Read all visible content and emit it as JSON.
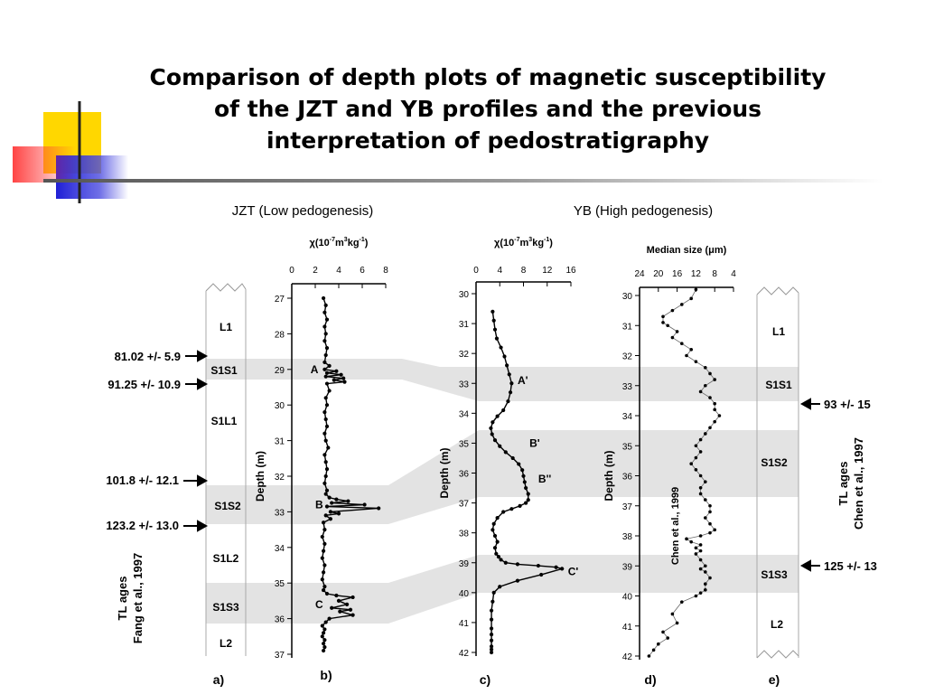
{
  "slide": {
    "title_lines": [
      "Comparison of depth plots of magnetic susceptibility",
      "of the JZT and YB profiles and the previous",
      "interpretation of pedostratigraphy"
    ]
  },
  "figure": {
    "jzt_header": "JZT (Low pedogenesis)",
    "yb_header": "YB (High pedogenesis)",
    "panel_labels": [
      "a)",
      "b)",
      "c)",
      "d)",
      "e)"
    ],
    "jzt_units": [
      "L1",
      "S1S1",
      "S1L1",
      "S1S2",
      "S1L2",
      "S1S3",
      "L2"
    ],
    "yb_units": [
      "L1",
      "S1S1",
      "S1S2",
      "S1S3",
      "L2"
    ],
    "jzt_tl_ages": [
      "81.02 +/- 5.9",
      "91.25 +/- 10.9",
      "101.8 +/- 12.1",
      "123.2 +/- 13.0"
    ],
    "yb_tl_ages": [
      "93 +/- 15",
      "125 +/- 13"
    ],
    "jzt_tl_caption": [
      "TL ages",
      "Fang et al., 1997"
    ],
    "yb_tl_caption": [
      "TL ages",
      "Chen et al., 1997"
    ],
    "chen_1999_label": "Chen et al., 1999",
    "colors": {
      "band": "#e3e3e3",
      "line": "#000000"
    }
  },
  "chart_data": [
    {
      "id": "b",
      "type": "line",
      "title": "b)",
      "xlabel_symbol": "χ",
      "xlabel_base": "(10",
      "xlabel_exp1": "-7",
      "xlabel_mid": "m",
      "xlabel_exp2": "3",
      "xlabel_mid2": "kg",
      "xlabel_exp3": "-1",
      "xlabel_end": ")",
      "ylabel": "Depth (m)",
      "xlim": [
        0,
        8
      ],
      "ylim": [
        26.7,
        37
      ],
      "xticks": [
        0,
        2,
        4,
        6,
        8
      ],
      "yticks": [
        27,
        28,
        29,
        30,
        31,
        32,
        33,
        34,
        35,
        36,
        37
      ],
      "y_reversed": true,
      "annotations": [
        {
          "text": "A",
          "x": 1.6,
          "y": 29.0
        },
        {
          "text": "B",
          "x": 2.0,
          "y": 32.8
        },
        {
          "text": "C",
          "x": 2.0,
          "y": 35.6
        }
      ],
      "series": [
        {
          "x": [
            2.7,
            2.9,
            2.8,
            3.0,
            2.8,
            2.9,
            2.8,
            3.0,
            2.9,
            2.8,
            3.2,
            2.8,
            3.8,
            3.0,
            4.2,
            2.9,
            4.4,
            3.6,
            4.5,
            3.0,
            3.2,
            2.9,
            3.0,
            2.8,
            2.9,
            3.0,
            2.8,
            2.9,
            3.1,
            2.8,
            2.9,
            3.0,
            2.9,
            2.8,
            3.0,
            2.9,
            3.2,
            3.8,
            4.8,
            3.4,
            6.2,
            3.0,
            7.4,
            3.3,
            4.0,
            2.9,
            3.3,
            2.7,
            2.8,
            2.6,
            2.8,
            2.7,
            2.6,
            2.8,
            2.7,
            2.6,
            2.8,
            2.7,
            3.0,
            3.8,
            5.2,
            4.0,
            4.7,
            3.4,
            5.0,
            4.1,
            5.2,
            3.2,
            2.9,
            2.6,
            2.8,
            2.7,
            2.6,
            2.8,
            2.7,
            2.8,
            2.7
          ],
          "y": [
            27.0,
            27.2,
            27.4,
            27.6,
            27.8,
            28.0,
            28.2,
            28.4,
            28.6,
            28.8,
            28.9,
            29.0,
            29.05,
            29.1,
            29.15,
            29.2,
            29.25,
            29.3,
            29.35,
            29.4,
            29.6,
            29.8,
            30.0,
            30.2,
            30.4,
            30.6,
            30.8,
            31.0,
            31.2,
            31.4,
            31.6,
            31.8,
            32.0,
            32.2,
            32.4,
            32.5,
            32.6,
            32.65,
            32.7,
            32.75,
            32.8,
            32.85,
            32.9,
            33.0,
            33.05,
            33.1,
            33.2,
            33.3,
            33.5,
            33.7,
            33.9,
            34.1,
            34.3,
            34.5,
            34.7,
            34.9,
            35.1,
            35.2,
            35.3,
            35.35,
            35.4,
            35.5,
            35.6,
            35.7,
            35.75,
            35.8,
            35.9,
            36.0,
            36.1,
            36.2,
            36.3,
            36.4,
            36.5,
            36.6,
            36.7,
            36.8,
            36.9
          ]
        }
      ]
    },
    {
      "id": "c",
      "type": "line",
      "title": "c)",
      "xlabel_symbol": "χ",
      "xlabel_base": "(10",
      "xlabel_exp1": "-7",
      "xlabel_mid": "m",
      "xlabel_exp2": "3",
      "xlabel_mid2": "kg",
      "xlabel_exp3": "-1",
      "xlabel_end": ")",
      "ylabel": "Depth (m)",
      "xlim": [
        0,
        16
      ],
      "ylim": [
        29.8,
        42
      ],
      "xticks": [
        0,
        4,
        8,
        12,
        16
      ],
      "yticks": [
        30,
        31,
        32,
        33,
        34,
        35,
        36,
        37,
        38,
        39,
        40,
        41,
        42
      ],
      "y_reversed": true,
      "annotations": [
        {
          "text": "A'",
          "x": 7.0,
          "y": 32.9
        },
        {
          "text": "B'",
          "x": 9.0,
          "y": 35.0
        },
        {
          "text": "B''",
          "x": 10.5,
          "y": 36.2
        },
        {
          "text": "C'",
          "x": 15.5,
          "y": 39.3
        }
      ],
      "series": [
        {
          "x": [
            2.8,
            3.0,
            3.2,
            3.5,
            4.2,
            4.8,
            5.2,
            5.6,
            6.0,
            5.8,
            5.4,
            4.6,
            3.6,
            2.8,
            2.5,
            2.7,
            3.2,
            4.0,
            5.0,
            6.2,
            7.2,
            7.8,
            8.0,
            8.2,
            8.4,
            8.8,
            8.8,
            8.4,
            7.4,
            6.0,
            4.6,
            3.6,
            3.0,
            2.8,
            3.2,
            3.6,
            3.2,
            3.4,
            3.8,
            4.2,
            5.0,
            7.0,
            10.5,
            13.5,
            14.5,
            11.0,
            7.0,
            4.0,
            3.0,
            2.8,
            2.6,
            2.6,
            2.6,
            2.6,
            2.6,
            2.6,
            2.6,
            2.6
          ],
          "y": [
            30.6,
            30.9,
            31.2,
            31.5,
            31.8,
            32.1,
            32.4,
            32.7,
            33.0,
            33.3,
            33.6,
            33.9,
            34.1,
            34.3,
            34.5,
            34.7,
            34.9,
            35.1,
            35.3,
            35.5,
            35.7,
            35.9,
            36.1,
            36.3,
            36.5,
            36.7,
            36.9,
            37.0,
            37.1,
            37.2,
            37.3,
            37.5,
            37.7,
            37.9,
            38.1,
            38.3,
            38.5,
            38.7,
            38.8,
            38.9,
            39.0,
            39.05,
            39.1,
            39.15,
            39.2,
            39.4,
            39.6,
            39.8,
            40.0,
            40.3,
            40.6,
            40.9,
            41.2,
            41.4,
            41.6,
            41.8,
            41.9,
            42.0
          ]
        }
      ]
    },
    {
      "id": "d",
      "type": "line",
      "title": "d)",
      "xlabel": "Median size (μm)",
      "ylabel": "Depth (m)",
      "xlim": [
        24,
        4
      ],
      "ylim": [
        29.8,
        42
      ],
      "xticks": [
        24,
        20,
        16,
        12,
        8,
        4
      ],
      "yticks": [
        30,
        31,
        32,
        33,
        34,
        35,
        36,
        37,
        38,
        39,
        40,
        41,
        42
      ],
      "y_reversed": true,
      "x_reversed": true,
      "series": [
        {
          "x": [
            12,
            13,
            15,
            17,
            19,
            19,
            18,
            16,
            17,
            15,
            13,
            14,
            12,
            10,
            9,
            8,
            10,
            11,
            9,
            8,
            8,
            7,
            8,
            9,
            10,
            11,
            12,
            11,
            12,
            13,
            12,
            11,
            10,
            11,
            11,
            10,
            9,
            9,
            10,
            9,
            8,
            9,
            11,
            14,
            13,
            11,
            12,
            11,
            12,
            11,
            10,
            11,
            10,
            9,
            10,
            10,
            11,
            12,
            15,
            17,
            16,
            19,
            18,
            20,
            21,
            22
          ],
          "y": [
            29.8,
            30.1,
            30.3,
            30.5,
            30.7,
            30.9,
            31.0,
            31.2,
            31.4,
            31.6,
            31.8,
            32.0,
            32.2,
            32.4,
            32.6,
            32.8,
            33.0,
            33.2,
            33.4,
            33.6,
            33.8,
            34.0,
            34.2,
            34.4,
            34.6,
            34.8,
            35.0,
            35.2,
            35.4,
            35.6,
            35.8,
            36.0,
            36.2,
            36.4,
            36.6,
            36.8,
            37.0,
            37.2,
            37.4,
            37.6,
            37.8,
            37.9,
            38.0,
            38.1,
            38.2,
            38.3,
            38.4,
            38.5,
            38.6,
            38.8,
            39.0,
            39.1,
            39.2,
            39.4,
            39.6,
            39.8,
            39.9,
            40.0,
            40.2,
            40.6,
            40.9,
            41.2,
            41.4,
            41.6,
            41.8,
            42.0
          ]
        }
      ]
    }
  ]
}
